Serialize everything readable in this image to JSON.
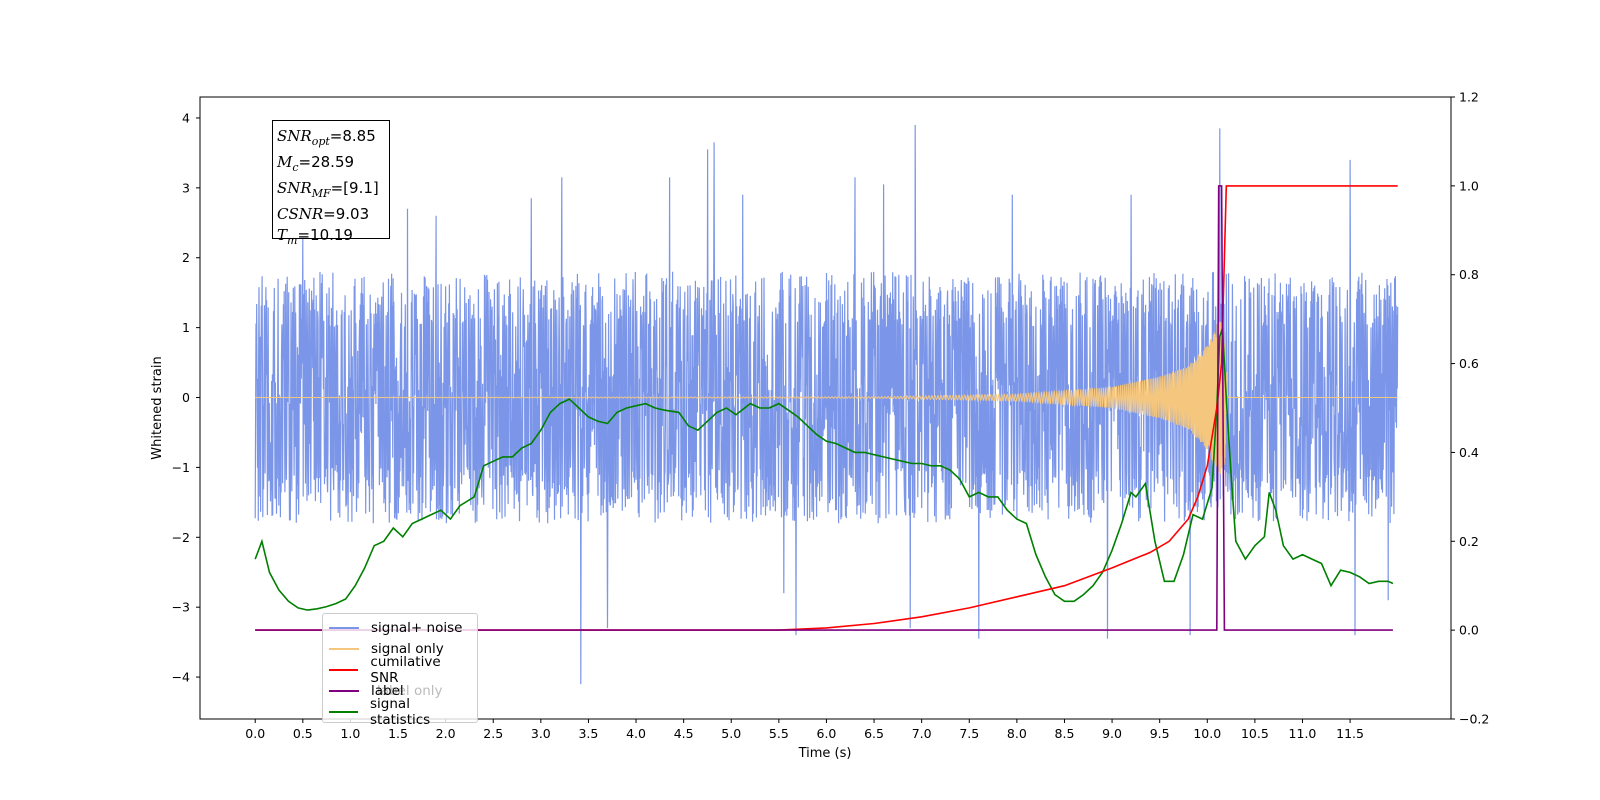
{
  "chart_data": {
    "type": "line",
    "xlabel": "Time (s)",
    "ylabel": "Whitened strain",
    "xlim": [
      -0.58,
      12.56
    ],
    "ylim": [
      -4.6,
      4.3
    ],
    "ylim_right": [
      -0.2,
      1.2
    ],
    "x_ticks": [
      "0.0",
      "0.5",
      "1.0",
      "1.5",
      "2.0",
      "2.5",
      "3.0",
      "3.5",
      "4.0",
      "4.5",
      "5.0",
      "5.5",
      "6.0",
      "6.5",
      "7.0",
      "7.5",
      "8.0",
      "8.5",
      "9.0",
      "9.5",
      "10.0",
      "10.5",
      "11.0",
      "11.5"
    ],
    "x_tick_values": [
      0,
      0.5,
      1,
      1.5,
      2,
      2.5,
      3,
      3.5,
      4,
      4.5,
      5,
      5.5,
      6,
      6.5,
      7,
      7.5,
      8,
      8.5,
      9,
      9.5,
      10,
      10.5,
      11,
      11.5
    ],
    "y_ticks": [
      "4",
      "3",
      "2",
      "1",
      "0",
      "−1",
      "−2",
      "−3",
      "−4"
    ],
    "y_tick_values": [
      4,
      3,
      2,
      1,
      0,
      -1,
      -2,
      -3,
      -4
    ],
    "y_right_ticks": [
      "1.2",
      "1.0",
      "0.8",
      "0.6",
      "0.4",
      "0.2",
      "0.0",
      "−0.2"
    ],
    "y_right_tick_values": [
      1.2,
      1.0,
      0.8,
      0.6,
      0.4,
      0.2,
      0.0,
      -0.2
    ],
    "grid": false,
    "legend_placement": "lower-left",
    "noise": {
      "t_start": 0.0,
      "t_end": 12.0,
      "typical_range": [
        -1.6,
        1.6
      ],
      "spikes": [
        {
          "t": 0.5,
          "v": 2.3
        },
        {
          "t": 1.6,
          "v": 2.7
        },
        {
          "t": 1.9,
          "v": 2.6
        },
        {
          "t": 2.9,
          "v": 2.85
        },
        {
          "t": 3.22,
          "v": 3.15
        },
        {
          "t": 3.42,
          "v": -4.1
        },
        {
          "t": 3.7,
          "v": -3.3
        },
        {
          "t": 4.35,
          "v": 3.15
        },
        {
          "t": 4.75,
          "v": 3.55
        },
        {
          "t": 4.82,
          "v": 3.65
        },
        {
          "t": 5.12,
          "v": 2.9
        },
        {
          "t": 5.55,
          "v": -2.8
        },
        {
          "t": 5.68,
          "v": -3.4
        },
        {
          "t": 6.3,
          "v": 3.15
        },
        {
          "t": 6.6,
          "v": 3.05
        },
        {
          "t": 6.88,
          "v": -3.3
        },
        {
          "t": 6.93,
          "v": 3.9
        },
        {
          "t": 7.6,
          "v": -3.45
        },
        {
          "t": 7.95,
          "v": 2.9
        },
        {
          "t": 8.95,
          "v": -3.45
        },
        {
          "t": 9.2,
          "v": 2.9
        },
        {
          "t": 9.82,
          "v": -3.4
        },
        {
          "t": 10.13,
          "v": 3.85
        },
        {
          "t": 11.5,
          "v": 3.4
        },
        {
          "t": 11.55,
          "v": -3.4
        },
        {
          "t": 11.9,
          "v": -2.9
        }
      ]
    },
    "signal_only": {
      "merger_time": 10.19,
      "points": [
        [
          0,
          0.0
        ],
        [
          6.5,
          0.01
        ],
        [
          8.0,
          0.05
        ],
        [
          9.0,
          0.15
        ],
        [
          9.5,
          0.3
        ],
        [
          9.8,
          0.45
        ],
        [
          10.0,
          0.75
        ],
        [
          10.1,
          1.05
        ],
        [
          10.15,
          1.1
        ],
        [
          10.19,
          0.95
        ],
        [
          10.22,
          0.0
        ],
        [
          12.0,
          0.0
        ]
      ]
    },
    "cumulative_snr": {
      "points": [
        [
          0,
          0
        ],
        [
          5.5,
          0
        ],
        [
          6.0,
          0.005
        ],
        [
          6.5,
          0.015
        ],
        [
          7.0,
          0.03
        ],
        [
          7.5,
          0.05
        ],
        [
          8.0,
          0.075
        ],
        [
          8.5,
          0.1
        ],
        [
          9.0,
          0.14
        ],
        [
          9.4,
          0.175
        ],
        [
          9.6,
          0.2
        ],
        [
          9.8,
          0.25
        ],
        [
          9.9,
          0.3
        ],
        [
          10.0,
          0.37
        ],
        [
          10.1,
          0.5
        ],
        [
          10.15,
          0.6
        ],
        [
          10.2,
          1.0
        ],
        [
          12.0,
          1.0
        ]
      ]
    },
    "label": {
      "points": [
        [
          0,
          0
        ],
        [
          10.1,
          0
        ],
        [
          10.12,
          1.0
        ],
        [
          10.15,
          1.0
        ],
        [
          10.18,
          0
        ],
        [
          11.95,
          0
        ]
      ]
    },
    "signal_statistics": {
      "points": [
        [
          0.0,
          0.16
        ],
        [
          0.07,
          0.2
        ],
        [
          0.15,
          0.13
        ],
        [
          0.25,
          0.09
        ],
        [
          0.35,
          0.065
        ],
        [
          0.45,
          0.05
        ],
        [
          0.55,
          0.045
        ],
        [
          0.65,
          0.048
        ],
        [
          0.75,
          0.053
        ],
        [
          0.85,
          0.06
        ],
        [
          0.95,
          0.07
        ],
        [
          1.05,
          0.1
        ],
        [
          1.15,
          0.14
        ],
        [
          1.25,
          0.19
        ],
        [
          1.35,
          0.2
        ],
        [
          1.45,
          0.23
        ],
        [
          1.55,
          0.21
        ],
        [
          1.65,
          0.24
        ],
        [
          1.75,
          0.25
        ],
        [
          1.85,
          0.26
        ],
        [
          1.95,
          0.27
        ],
        [
          2.05,
          0.25
        ],
        [
          2.15,
          0.28
        ],
        [
          2.3,
          0.3
        ],
        [
          2.4,
          0.37
        ],
        [
          2.5,
          0.38
        ],
        [
          2.6,
          0.39
        ],
        [
          2.7,
          0.39
        ],
        [
          2.8,
          0.41
        ],
        [
          2.9,
          0.42
        ],
        [
          3.0,
          0.45
        ],
        [
          3.1,
          0.49
        ],
        [
          3.2,
          0.51
        ],
        [
          3.3,
          0.52
        ],
        [
          3.4,
          0.5
        ],
        [
          3.5,
          0.48
        ],
        [
          3.6,
          0.47
        ],
        [
          3.7,
          0.465
        ],
        [
          3.8,
          0.49
        ],
        [
          3.9,
          0.5
        ],
        [
          4.0,
          0.505
        ],
        [
          4.1,
          0.51
        ],
        [
          4.2,
          0.5
        ],
        [
          4.3,
          0.495
        ],
        [
          4.45,
          0.49
        ],
        [
          4.55,
          0.46
        ],
        [
          4.65,
          0.45
        ],
        [
          4.75,
          0.47
        ],
        [
          4.85,
          0.49
        ],
        [
          4.95,
          0.5
        ],
        [
          5.05,
          0.485
        ],
        [
          5.2,
          0.51
        ],
        [
          5.3,
          0.5
        ],
        [
          5.4,
          0.5
        ],
        [
          5.5,
          0.51
        ],
        [
          5.6,
          0.495
        ],
        [
          5.7,
          0.48
        ],
        [
          5.8,
          0.46
        ],
        [
          5.9,
          0.44
        ],
        [
          6.0,
          0.425
        ],
        [
          6.1,
          0.42
        ],
        [
          6.2,
          0.41
        ],
        [
          6.3,
          0.4
        ],
        [
          6.4,
          0.4
        ],
        [
          6.5,
          0.395
        ],
        [
          6.6,
          0.39
        ],
        [
          6.7,
          0.385
        ],
        [
          6.8,
          0.38
        ],
        [
          6.9,
          0.375
        ],
        [
          7.0,
          0.375
        ],
        [
          7.1,
          0.37
        ],
        [
          7.2,
          0.37
        ],
        [
          7.3,
          0.36
        ],
        [
          7.4,
          0.34
        ],
        [
          7.5,
          0.3
        ],
        [
          7.6,
          0.31
        ],
        [
          7.7,
          0.3
        ],
        [
          7.8,
          0.3
        ],
        [
          7.9,
          0.27
        ],
        [
          8.0,
          0.25
        ],
        [
          8.1,
          0.24
        ],
        [
          8.2,
          0.17
        ],
        [
          8.3,
          0.12
        ],
        [
          8.4,
          0.08
        ],
        [
          8.5,
          0.065
        ],
        [
          8.6,
          0.065
        ],
        [
          8.7,
          0.08
        ],
        [
          8.8,
          0.1
        ],
        [
          8.9,
          0.13
        ],
        [
          9.0,
          0.18
        ],
        [
          9.1,
          0.24
        ],
        [
          9.2,
          0.31
        ],
        [
          9.25,
          0.3
        ],
        [
          9.35,
          0.33
        ],
        [
          9.45,
          0.2
        ],
        [
          9.55,
          0.11
        ],
        [
          9.65,
          0.11
        ],
        [
          9.75,
          0.17
        ],
        [
          9.85,
          0.26
        ],
        [
          9.95,
          0.25
        ],
        [
          10.05,
          0.32
        ],
        [
          10.1,
          0.5
        ],
        [
          10.13,
          0.66
        ],
        [
          10.16,
          0.68
        ],
        [
          10.2,
          0.52
        ],
        [
          10.25,
          0.35
        ],
        [
          10.3,
          0.2
        ],
        [
          10.4,
          0.16
        ],
        [
          10.5,
          0.19
        ],
        [
          10.6,
          0.21
        ],
        [
          10.65,
          0.31
        ],
        [
          10.72,
          0.27
        ],
        [
          10.8,
          0.19
        ],
        [
          10.9,
          0.16
        ],
        [
          11.0,
          0.17
        ],
        [
          11.1,
          0.16
        ],
        [
          11.2,
          0.15
        ],
        [
          11.3,
          0.1
        ],
        [
          11.4,
          0.135
        ],
        [
          11.5,
          0.13
        ],
        [
          11.6,
          0.12
        ],
        [
          11.7,
          0.105
        ],
        [
          11.8,
          0.11
        ],
        [
          11.9,
          0.11
        ],
        [
          11.95,
          0.105
        ]
      ]
    },
    "series": [
      {
        "name": "signal+ noise",
        "color": "#7b96e8"
      },
      {
        "name": "signal only",
        "color": "#f5c77e"
      },
      {
        "name": "cumilative SNR",
        "color": "#ff0000"
      },
      {
        "name": "label",
        "color": "#800080"
      },
      {
        "name": "signal statistics",
        "color": "#008000"
      }
    ],
    "hidden_legend_text": "label only"
  },
  "infobox": {
    "snr_opt_base": "SNR",
    "snr_opt_sub": "opt",
    "snr_opt_value": "=8.85",
    "mc_base": "M",
    "mc_sub": "c",
    "mc_value": "=28.59",
    "snr_mf_base": "SNR",
    "snr_mf_sub": "MF",
    "snr_mf_value": "=[9.1]",
    "csnr_base": "CSNR",
    "csnr_value": "=9.03",
    "tm_base": "T",
    "tm_sub": "m",
    "tm_value": "=10.19"
  }
}
